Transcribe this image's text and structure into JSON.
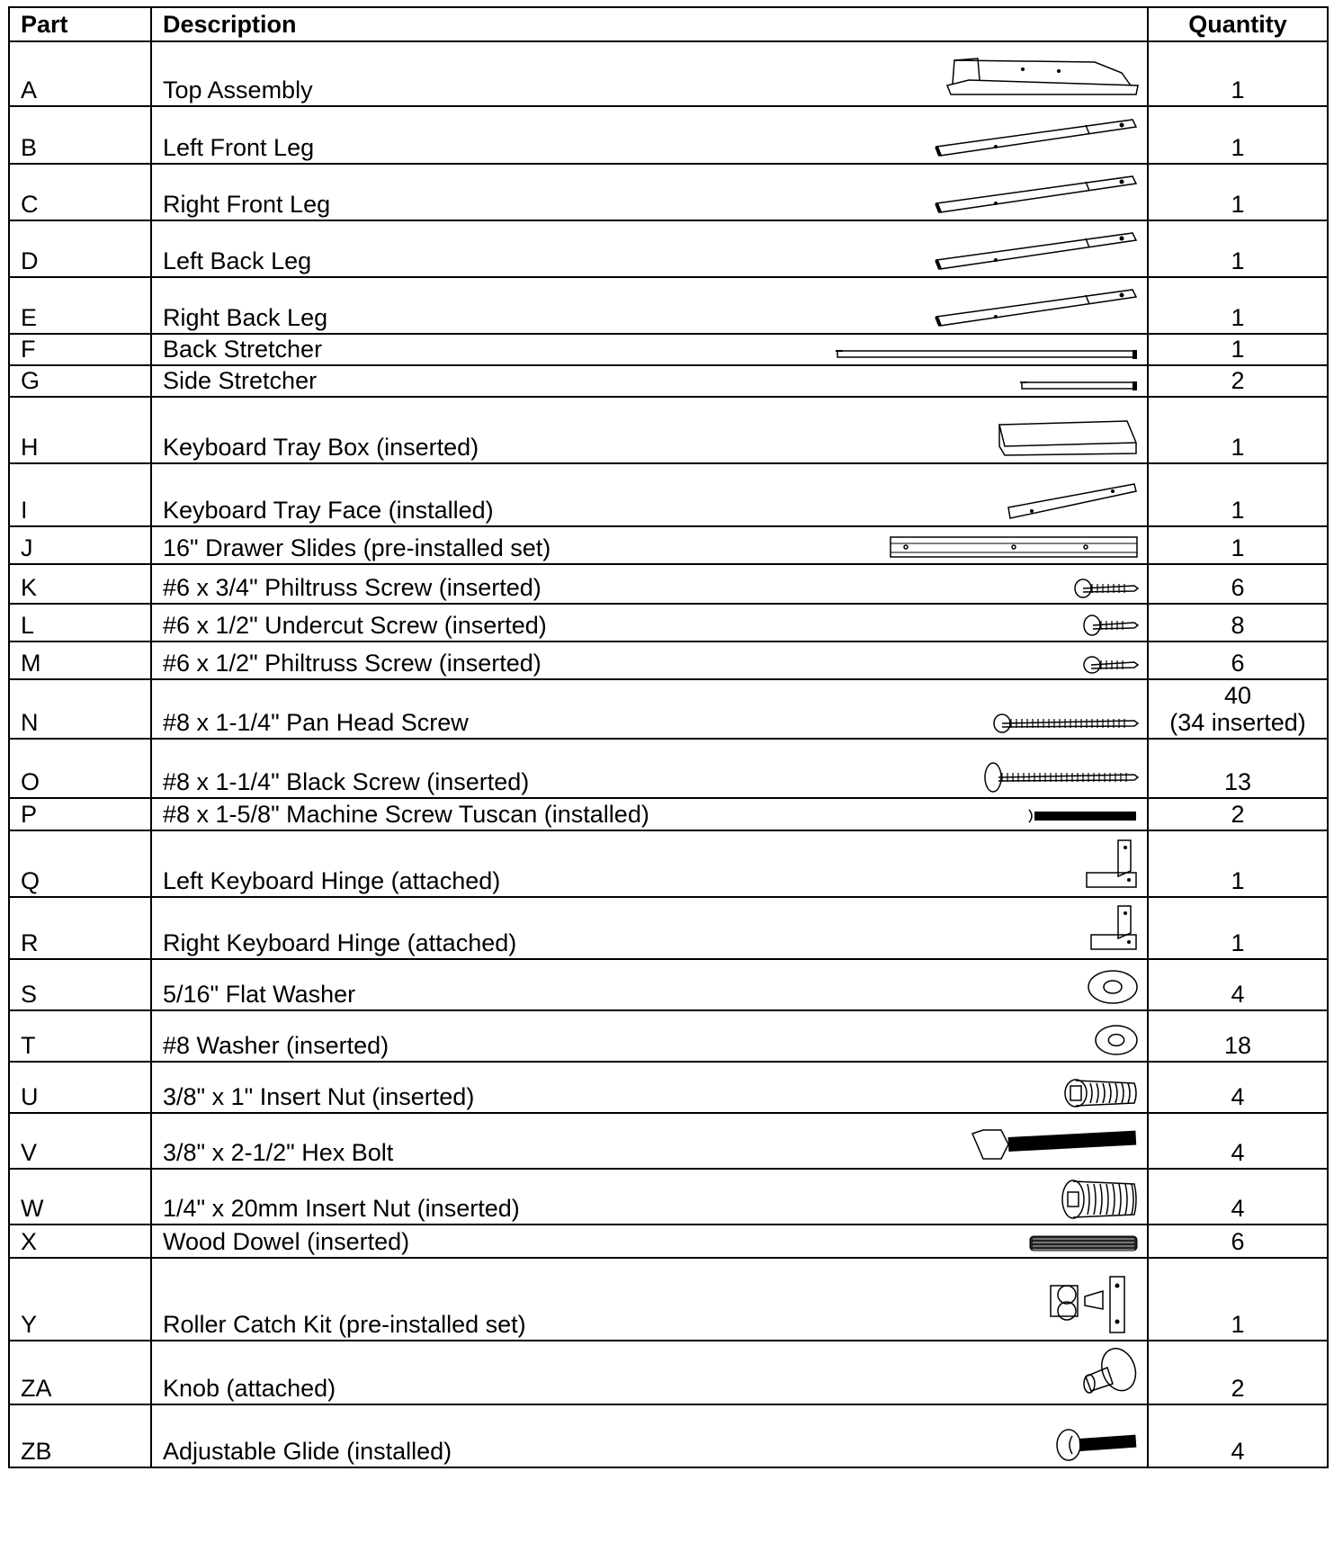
{
  "headers": {
    "part": "Part",
    "description": "Description",
    "quantity": "Quantity"
  },
  "rows": [
    {
      "part": "A",
      "description": "Top Assembly",
      "quantity": "1",
      "icon": "top-assembly-icon"
    },
    {
      "part": "B",
      "description": "Left Front Leg",
      "quantity": "1",
      "icon": "leg-icon"
    },
    {
      "part": "C",
      "description": "Right Front Leg",
      "quantity": "1",
      "icon": "leg-icon"
    },
    {
      "part": "D",
      "description": "Left Back Leg",
      "quantity": "1",
      "icon": "leg-icon"
    },
    {
      "part": "E",
      "description": "Right Back Leg",
      "quantity": "1",
      "icon": "leg-icon"
    },
    {
      "part": "F",
      "description": "Back Stretcher",
      "quantity": "1",
      "icon": "back-stretcher-icon"
    },
    {
      "part": "G",
      "description": "Side Stretcher",
      "quantity": "2",
      "icon": "side-stretcher-icon"
    },
    {
      "part": "H",
      "description": "Keyboard Tray Box (inserted)",
      "quantity": "1",
      "icon": "tray-box-icon"
    },
    {
      "part": "I",
      "description": "Keyboard Tray Face (installed)",
      "quantity": "1",
      "icon": "tray-face-icon"
    },
    {
      "part": "J",
      "description": "16\" Drawer Slides (pre-installed set)",
      "quantity": "1",
      "icon": "drawer-slide-icon"
    },
    {
      "part": "K",
      "description": "#6 x 3/4\" Philtruss Screw (inserted)",
      "quantity": "6",
      "icon": "screw-icon"
    },
    {
      "part": "L",
      "description": "#6 x 1/2\" Undercut Screw (inserted)",
      "quantity": "8",
      "icon": "screw-icon"
    },
    {
      "part": "M",
      "description": "#6 x 1/2\" Philtruss Screw (inserted)",
      "quantity": "6",
      "icon": "screw-icon"
    },
    {
      "part": "N",
      "description": "#8 x 1-1/4\" Pan Head Screw",
      "quantity": "40",
      "quantity2": "(34 inserted)",
      "icon": "screw-icon"
    },
    {
      "part": "O",
      "description": "#8 x 1-1/4\" Black Screw (inserted)",
      "quantity": "13",
      "icon": "screw-icon"
    },
    {
      "part": "P",
      "description": "#8 x 1-5/8\" Machine Screw Tuscan (installed)",
      "quantity": "2",
      "icon": "machine-screw-icon"
    },
    {
      "part": "Q",
      "description": "Left Keyboard Hinge (attached)",
      "quantity": "1",
      "icon": "hinge-icon"
    },
    {
      "part": "R",
      "description": "Right Keyboard Hinge (attached)",
      "quantity": "1",
      "icon": "hinge-icon"
    },
    {
      "part": "S",
      "description": "5/16\" Flat Washer",
      "quantity": "4",
      "icon": "washer-icon"
    },
    {
      "part": "T",
      "description": "#8 Washer (inserted)",
      "quantity": "18",
      "icon": "washer-icon"
    },
    {
      "part": "U",
      "description": "3/8\" x 1\" Insert Nut (inserted)",
      "quantity": "4",
      "icon": "insert-nut-icon"
    },
    {
      "part": "V",
      "description": "3/8\" x 2-1/2\" Hex Bolt",
      "quantity": "4",
      "icon": "hex-bolt-icon"
    },
    {
      "part": "W",
      "description": "1/4\" x 20mm Insert Nut (inserted)",
      "quantity": "4",
      "icon": "insert-nut-icon"
    },
    {
      "part": "X",
      "description": "Wood Dowel (inserted)",
      "quantity": "6",
      "icon": "dowel-icon"
    },
    {
      "part": "Y",
      "description": "Roller Catch Kit (pre-installed set)",
      "quantity": "1",
      "icon": "roller-catch-icon"
    },
    {
      "part": "ZA",
      "description": "Knob (attached)",
      "quantity": "2",
      "icon": "knob-icon"
    },
    {
      "part": "ZB",
      "description": "Adjustable Glide (installed)",
      "quantity": "4",
      "icon": "glide-icon"
    }
  ]
}
